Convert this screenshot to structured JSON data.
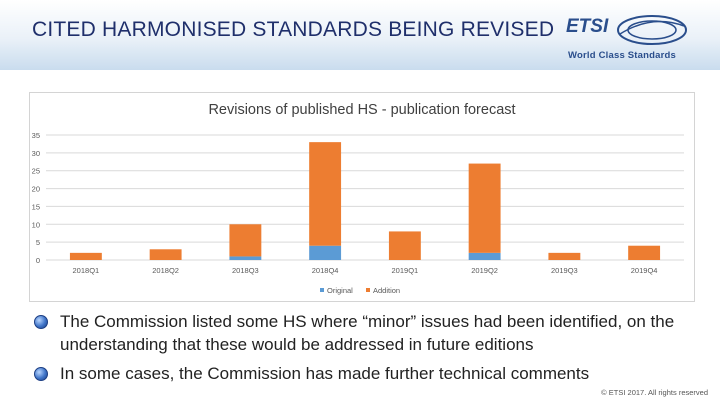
{
  "slide": {
    "title": "CITED HARMONISED STANDARDS BEING REVISED",
    "logo": {
      "name": "ETSI",
      "tagline": "World Class Standards"
    },
    "footer": "© ETSI 2017. All rights reserved"
  },
  "bullets": [
    "The Commission listed some HS where “minor” issues had been identified, on the understanding that these would be addressed in future editions",
    "In some cases, the Commission has made further technical comments"
  ],
  "colors": {
    "original": "#5b9bd5",
    "addition": "#ed7d31",
    "title": "#1f2f6b"
  },
  "chart_data": {
    "type": "bar",
    "stacked": true,
    "title": "Revisions of published HS - publication forecast",
    "categories": [
      "2018Q1",
      "2018Q2",
      "2018Q3",
      "2018Q4",
      "2019Q1",
      "2019Q2",
      "2019Q3",
      "2019Q4"
    ],
    "series": [
      {
        "name": "Original",
        "values": [
          0,
          0,
          1,
          4,
          0,
          2,
          0,
          0
        ]
      },
      {
        "name": "Addition",
        "values": [
          2,
          3,
          9,
          29,
          8,
          25,
          2,
          4
        ]
      }
    ],
    "yticks": [
      "0",
      "5",
      "10",
      "15",
      "20",
      "25",
      "30",
      "35"
    ],
    "ylim": [
      0,
      35
    ],
    "grid": true,
    "legend": "bottom"
  }
}
